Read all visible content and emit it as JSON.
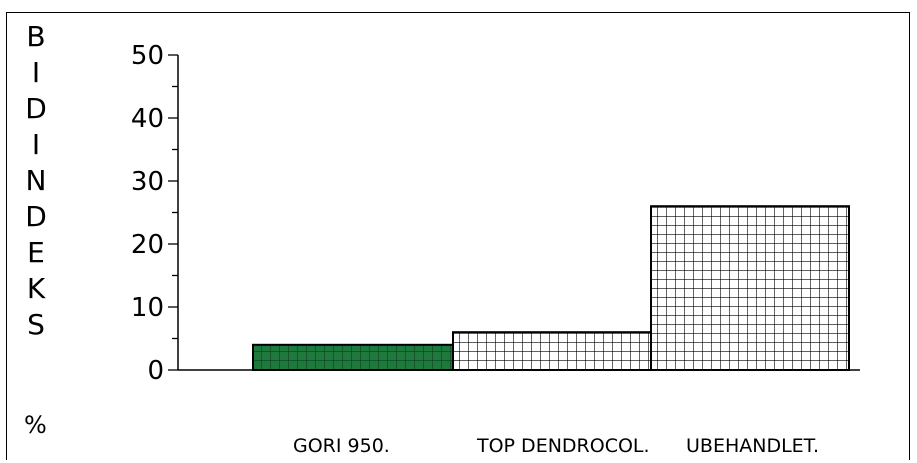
{
  "chart_data": {
    "type": "bar",
    "categories": [
      "GORI 950.",
      "TOP DENDROCOL.",
      "UBEHANDLET."
    ],
    "values": [
      4,
      6,
      26
    ],
    "ylabel": "BIDINDEKS",
    "unit": "%",
    "ylim": [
      0,
      50
    ],
    "yticks": [
      "0",
      "10",
      "20",
      "30",
      "40",
      "50"
    ],
    "grid": false,
    "legend": "none",
    "bar_colors": [
      "#1e7a3c",
      "#ffffff",
      "#ffffff"
    ],
    "bar_hatch": [
      "grid",
      "grid",
      "grid"
    ]
  }
}
